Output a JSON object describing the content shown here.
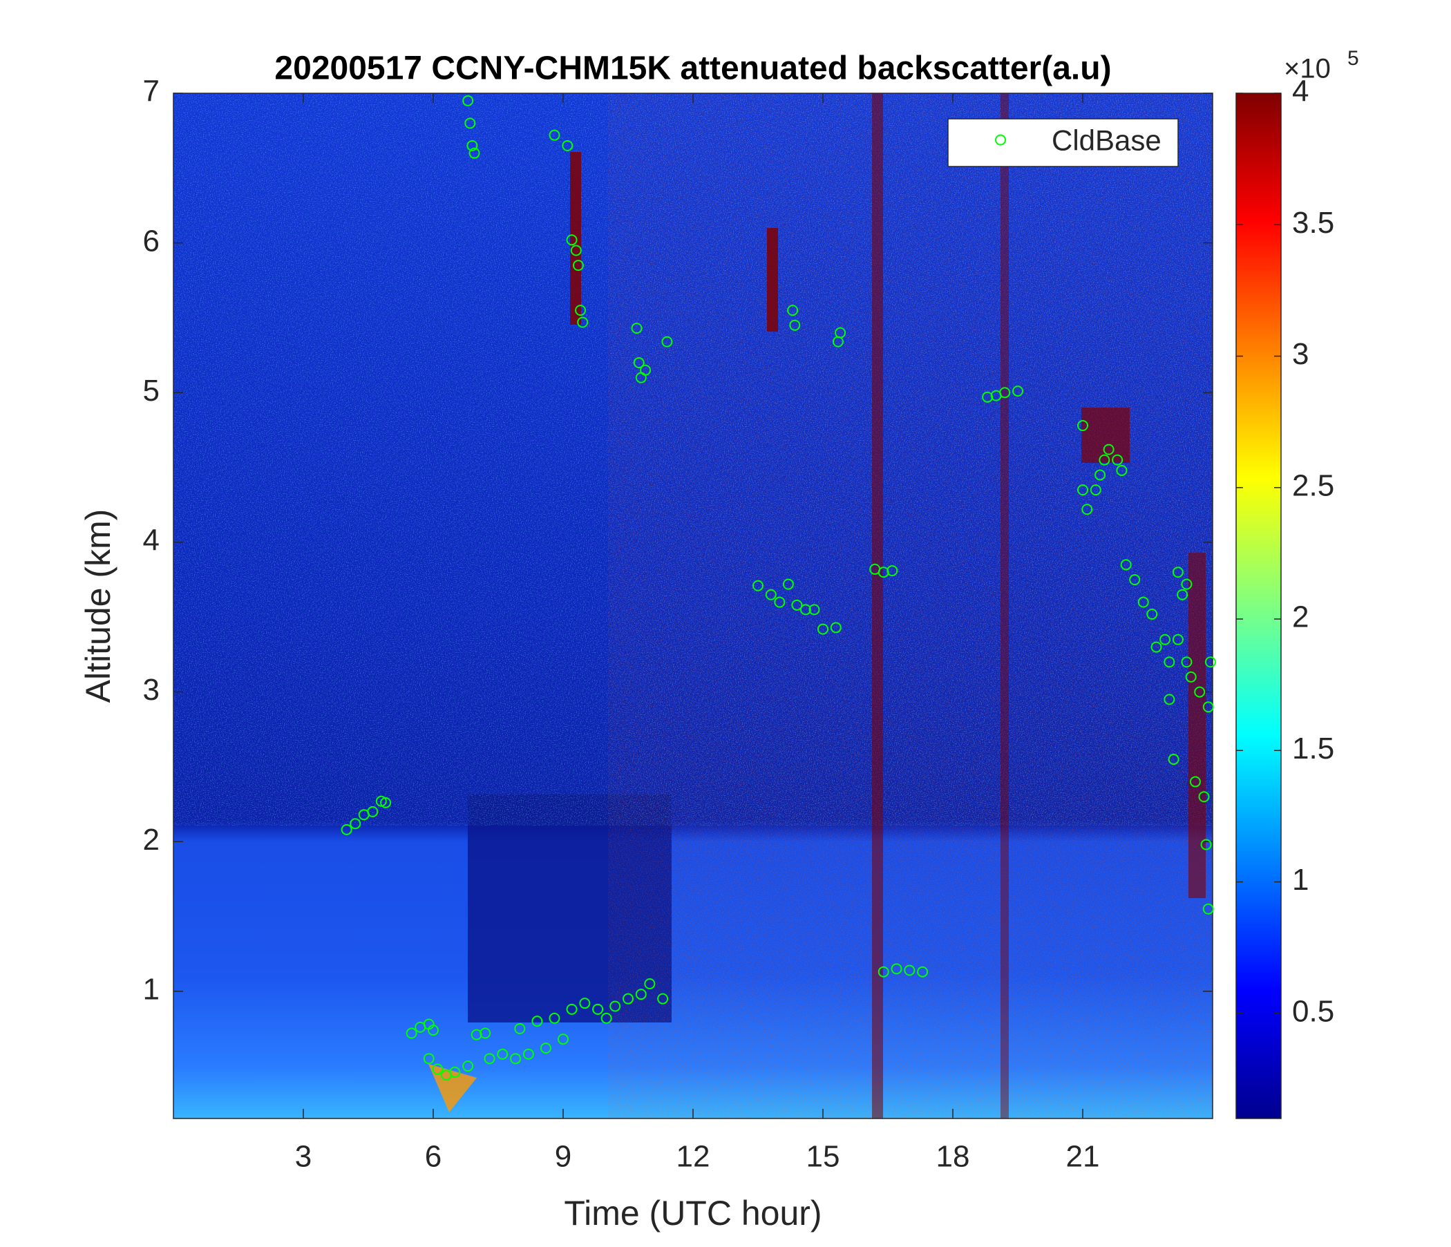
{
  "chart_data": {
    "type": "scatter",
    "title": "20200517 CCNY-CHM15K attenuated backscatter(a.u)",
    "xlabel": "Time (UTC hour)",
    "ylabel": "Altitude (km)",
    "xlim": [
      0,
      24
    ],
    "xticks": [
      3,
      6,
      9,
      12,
      15,
      18,
      21
    ],
    "ylim": [
      0.15,
      7
    ],
    "yticks": [
      1,
      2,
      3,
      4,
      5,
      6,
      7
    ],
    "grid": false,
    "legend": "northeast",
    "series": [
      {
        "name": "CldBase",
        "color": "#00ff00",
        "x": [
          4.0,
          4.2,
          4.4,
          4.6,
          4.8,
          4.9,
          5.5,
          5.7,
          5.9,
          6.0,
          5.9,
          6.1,
          6.3,
          6.5,
          6.8,
          6.8,
          6.85,
          6.9,
          6.95,
          7.0,
          7.2,
          7.3,
          7.6,
          7.9,
          8.0,
          8.2,
          8.4,
          8.6,
          8.8,
          9.0,
          9.2,
          8.8,
          9.1,
          9.2,
          9.3,
          9.35,
          9.4,
          9.45,
          9.5,
          9.8,
          10.0,
          10.2,
          10.5,
          10.8,
          11.0,
          11.3,
          10.7,
          10.75,
          10.8,
          10.9,
          11.4,
          13.5,
          13.8,
          14.0,
          14.2,
          14.4,
          14.6,
          14.8,
          15.0,
          15.3,
          14.3,
          14.35,
          15.4,
          15.35,
          16.2,
          16.4,
          16.6,
          16.4,
          16.7,
          17.0,
          17.3,
          18.8,
          19.0,
          19.2,
          19.5,
          21.0,
          21.0,
          21.1,
          21.3,
          21.4,
          21.5,
          21.6,
          21.8,
          21.9,
          22.0,
          22.2,
          22.4,
          22.6,
          22.7,
          22.9,
          23.0,
          23.0,
          23.1,
          23.2,
          23.2,
          23.3,
          23.4,
          23.4,
          23.5,
          23.6,
          23.7,
          23.8,
          23.85,
          23.9,
          23.9,
          23.95
        ],
        "values": [
          2.08,
          2.12,
          2.18,
          2.2,
          2.27,
          2.26,
          0.72,
          0.76,
          0.78,
          0.74,
          0.55,
          0.48,
          0.44,
          0.46,
          0.5,
          6.95,
          6.8,
          6.65,
          6.6,
          0.71,
          0.72,
          0.55,
          0.58,
          0.55,
          0.75,
          0.58,
          0.8,
          0.62,
          0.82,
          0.68,
          0.88,
          6.72,
          6.65,
          6.02,
          5.95,
          5.85,
          5.55,
          5.47,
          0.92,
          0.88,
          0.82,
          0.9,
          0.95,
          0.98,
          1.05,
          0.95,
          5.43,
          5.2,
          5.1,
          5.15,
          5.34,
          3.71,
          3.65,
          3.6,
          3.72,
          3.58,
          3.55,
          3.55,
          3.42,
          3.43,
          5.55,
          5.45,
          5.4,
          5.34,
          3.82,
          3.8,
          3.81,
          1.13,
          1.15,
          1.14,
          1.13,
          4.97,
          4.98,
          5.0,
          5.01,
          4.78,
          4.35,
          4.22,
          4.35,
          4.45,
          4.55,
          4.62,
          4.55,
          4.48,
          3.85,
          3.75,
          3.6,
          3.52,
          3.3,
          3.35,
          3.2,
          2.95,
          2.55,
          3.35,
          3.8,
          3.65,
          3.72,
          3.2,
          3.1,
          2.4,
          3.0,
          2.3,
          1.98,
          1.55,
          2.9,
          3.2
        ]
      }
    ],
    "colorbar": {
      "colormap": "jet",
      "clim": [
        0.1,
        4
      ],
      "ticks": [
        0.5,
        1,
        1.5,
        2,
        2.5,
        3,
        3.5,
        4
      ],
      "exponent_label": "×10",
      "exponent": "5"
    }
  }
}
